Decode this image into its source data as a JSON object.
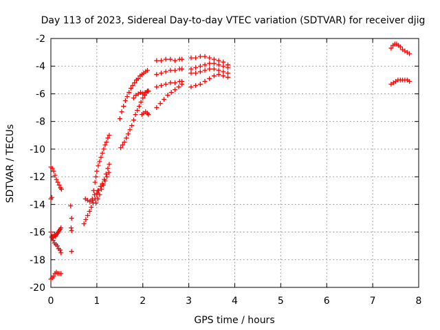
{
  "chart_data": {
    "type": "scatter",
    "title": "Day 113 of 2023, Sidereal Day-to-day VTEC variation (SDTVAR) for receiver djig",
    "xlabel": "GPS time / hours",
    "ylabel": "SDTVAR / TECUs",
    "xlim": [
      0,
      8
    ],
    "ylim": [
      -20,
      -2
    ],
    "x_ticks": [
      "0",
      "1",
      "2",
      "3",
      "4",
      "5",
      "6",
      "7",
      "8"
    ],
    "y_ticks": [
      "-20",
      "-18",
      "-16",
      "-14",
      "-12",
      "-10",
      "-8",
      "-6",
      "-4",
      "-2"
    ],
    "grid": true,
    "marker": "+",
    "color": "#ff0000",
    "series": [
      {
        "x": [
          0.0,
          0.03,
          0.06,
          0.09,
          0.12,
          0.15,
          0.18,
          0.21,
          0.23
        ],
        "y": [
          -11.3,
          -11.4,
          -11.6,
          -11.9,
          -12.2,
          -12.4,
          -12.6,
          -12.8,
          -12.9
        ]
      },
      {
        "x": [
          0.0,
          0.02
        ],
        "y": [
          -13.6,
          -13.5
        ]
      },
      {
        "x": [
          0.0,
          0.02,
          0.04,
          0.06,
          0.08,
          0.1,
          0.12,
          0.14,
          0.16,
          0.18,
          0.2,
          0.22
        ],
        "y": [
          -16.0,
          -16.3,
          -16.4,
          -16.3,
          -16.2,
          -16.3,
          -16.2,
          -16.1,
          -16.0,
          -15.9,
          -15.8,
          -15.7
        ]
      },
      {
        "x": [
          0.02,
          0.05,
          0.08,
          0.11,
          0.14,
          0.17,
          0.2,
          0.22
        ],
        "y": [
          -16.4,
          -16.6,
          -16.8,
          -16.9,
          -17.0,
          -17.2,
          -17.3,
          -17.5
        ]
      },
      {
        "x": [
          0.0,
          0.03,
          0.06,
          0.09,
          0.12,
          0.15,
          0.18,
          0.22
        ],
        "y": [
          -19.4,
          -19.3,
          -19.2,
          -19.0,
          -18.9,
          -19.0,
          -19.0,
          -19.0
        ]
      },
      {
        "x": [
          0.43,
          0.45,
          0.44,
          0.45,
          0.45
        ],
        "y": [
          -14.1,
          -15.0,
          -15.7,
          -15.9,
          -17.4
        ]
      },
      {
        "x": [
          0.72,
          0.76,
          0.8,
          0.84,
          0.88,
          0.92,
          0.96,
          1.0,
          1.04,
          1.08,
          1.12,
          1.16,
          1.2,
          1.24,
          1.27
        ],
        "y": [
          -15.4,
          -15.1,
          -14.8,
          -14.5,
          -14.2,
          -13.9,
          -13.6,
          -13.3,
          -13.0,
          -12.7,
          -12.5,
          -12.2,
          -11.8,
          -11.4,
          -11.1
        ]
      },
      {
        "x": [
          0.75,
          0.8,
          0.85,
          0.9,
          0.95,
          1.0,
          1.02
        ],
        "y": [
          -13.6,
          -13.7,
          -13.8,
          -13.6,
          -13.3,
          -13.2,
          -13.0
        ]
      },
      {
        "x": [
          0.9,
          0.93,
          0.96,
          0.98,
          1.0,
          1.03,
          1.06,
          1.09,
          1.12,
          1.15,
          1.18,
          1.21,
          1.24,
          1.27
        ],
        "y": [
          -13.7,
          -13.0,
          -12.4,
          -12.0,
          -11.6,
          -11.2,
          -10.9,
          -10.6,
          -10.3,
          -10.0,
          -9.7,
          -9.5,
          -9.2,
          -9.0
        ]
      },
      {
        "x": [
          0.98,
          1.02,
          1.06,
          1.1,
          1.14,
          1.18,
          1.22,
          1.26
        ],
        "y": [
          -13.9,
          -13.6,
          -13.3,
          -12.9,
          -12.6,
          -12.3,
          -12.0,
          -11.7
        ]
      },
      {
        "x": [
          1.5,
          1.54,
          1.58,
          1.62,
          1.66,
          1.7,
          1.74,
          1.78,
          1.82,
          1.86,
          1.9,
          1.94,
          1.98,
          2.02,
          2.06,
          2.1
        ],
        "y": [
          -7.8,
          -7.3,
          -6.9,
          -6.5,
          -6.2,
          -5.9,
          -5.6,
          -5.4,
          -5.2,
          -5.0,
          -4.9,
          -4.7,
          -4.6,
          -4.5,
          -4.4,
          -4.3
        ]
      },
      {
        "x": [
          1.52,
          1.56,
          1.6,
          1.64,
          1.68,
          1.72,
          1.76,
          1.8,
          1.84,
          1.88,
          1.92,
          1.96,
          2.0,
          2.04,
          2.08,
          2.12
        ],
        "y": [
          -9.9,
          -9.7,
          -9.5,
          -9.2,
          -8.9,
          -8.6,
          -8.3,
          -7.9,
          -7.5,
          -7.2,
          -6.9,
          -6.6,
          -6.3,
          -6.1,
          -5.9,
          -5.8
        ]
      },
      {
        "x": [
          1.8,
          1.85,
          1.9,
          1.95,
          2.0,
          2.05,
          2.1,
          2.12
        ],
        "y": [
          -6.3,
          -6.1,
          -6.0,
          -5.9,
          -6.0,
          -5.9,
          -5.8,
          -5.8
        ]
      },
      {
        "x": [
          1.98,
          2.02,
          2.06,
          2.1,
          2.12
        ],
        "y": [
          -7.5,
          -7.4,
          -7.3,
          -7.4,
          -7.5
        ]
      },
      {
        "x": [
          2.3,
          2.4,
          2.5,
          2.6,
          2.7,
          2.8,
          2.85
        ],
        "y": [
          -3.6,
          -3.6,
          -3.5,
          -3.5,
          -3.6,
          -3.5,
          -3.5
        ]
      },
      {
        "x": [
          2.3,
          2.4,
          2.5,
          2.6,
          2.7,
          2.8,
          2.85
        ],
        "y": [
          -4.6,
          -4.5,
          -4.4,
          -4.3,
          -4.3,
          -4.2,
          -4.2
        ]
      },
      {
        "x": [
          2.3,
          2.4,
          2.5,
          2.6,
          2.7,
          2.8,
          2.85
        ],
        "y": [
          -5.5,
          -5.4,
          -5.3,
          -5.2,
          -5.2,
          -5.1,
          -5.1
        ]
      },
      {
        "x": [
          2.3,
          2.38,
          2.46,
          2.54,
          2.62,
          2.7,
          2.78,
          2.85
        ],
        "y": [
          -7.0,
          -6.7,
          -6.4,
          -6.1,
          -5.9,
          -5.7,
          -5.5,
          -5.3
        ]
      },
      {
        "x": [
          3.05,
          3.15,
          3.25,
          3.35,
          3.45,
          3.55,
          3.65,
          3.75,
          3.85
        ],
        "y": [
          -3.4,
          -3.4,
          -3.3,
          -3.3,
          -3.4,
          -3.5,
          -3.6,
          -3.7,
          -3.9
        ]
      },
      {
        "x": [
          3.05,
          3.15,
          3.25,
          3.35,
          3.45,
          3.55,
          3.65,
          3.75,
          3.85
        ],
        "y": [
          -4.2,
          -4.1,
          -4.0,
          -3.9,
          -3.8,
          -3.8,
          -3.9,
          -4.0,
          -4.1
        ]
      },
      {
        "x": [
          3.05,
          3.15,
          3.25,
          3.35,
          3.45,
          3.55,
          3.65,
          3.75,
          3.85
        ],
        "y": [
          -4.5,
          -4.5,
          -4.4,
          -4.3,
          -4.2,
          -4.2,
          -4.3,
          -4.4,
          -4.5
        ]
      },
      {
        "x": [
          3.05,
          3.15,
          3.25,
          3.35,
          3.45,
          3.55,
          3.65,
          3.75,
          3.85
        ],
        "y": [
          -5.5,
          -5.4,
          -5.3,
          -5.1,
          -4.9,
          -4.7,
          -4.6,
          -4.7,
          -4.8
        ]
      },
      {
        "x": [
          7.4,
          7.44,
          7.48,
          7.52,
          7.56,
          7.6,
          7.65,
          7.7,
          7.75,
          7.8
        ],
        "y": [
          -2.7,
          -2.5,
          -2.4,
          -2.4,
          -2.5,
          -2.6,
          -2.8,
          -2.9,
          -3.0,
          -3.1
        ]
      },
      {
        "x": [
          7.4,
          7.45,
          7.5,
          7.55,
          7.6,
          7.65,
          7.7,
          7.75,
          7.8
        ],
        "y": [
          -5.3,
          -5.2,
          -5.1,
          -5.0,
          -5.0,
          -5.0,
          -5.0,
          -5.0,
          -5.1
        ]
      }
    ]
  }
}
